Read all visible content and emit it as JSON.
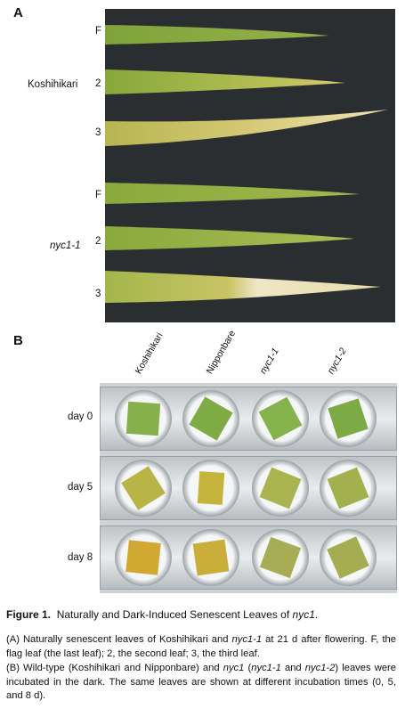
{
  "panel_a": {
    "letter": "A",
    "group1_label": "Koshihikari",
    "group2_label": "nyc1-1",
    "leaf_labels": [
      "F",
      "2",
      "3",
      "F",
      "2",
      "3"
    ]
  },
  "panel_b": {
    "letter": "B",
    "columns": [
      "Koshihikari",
      "Nipponbare",
      "nyc1-1",
      "nyc1-2"
    ],
    "rows": [
      "day 0",
      "day 5",
      "day 8"
    ]
  },
  "caption": {
    "figure_label": "Figure 1.",
    "title_pre": "Naturally and Dark-Induced Senescent Leaves of ",
    "title_ital": "nyc1",
    "title_post": ".",
    "a_1": "(A) Naturally senescent leaves of Koshihikari and ",
    "a_ital": "nyc1-1",
    "a_2": " at 21 d after flowering. F, the flag leaf (the last leaf); 2, the second leaf; 3, the third leaf.",
    "b_1": "(B) Wild-type (Koshihikari and Nipponbare) and ",
    "b_ital1": "nyc1",
    "b_2": " (",
    "b_ital2": "nyc1-1",
    "b_3": " and ",
    "b_ital3": "nyc1-2",
    "b_4": ") leaves were incubated in the dark. The same leaves are shown at different incubation times (0, 5, and 8 d)."
  }
}
